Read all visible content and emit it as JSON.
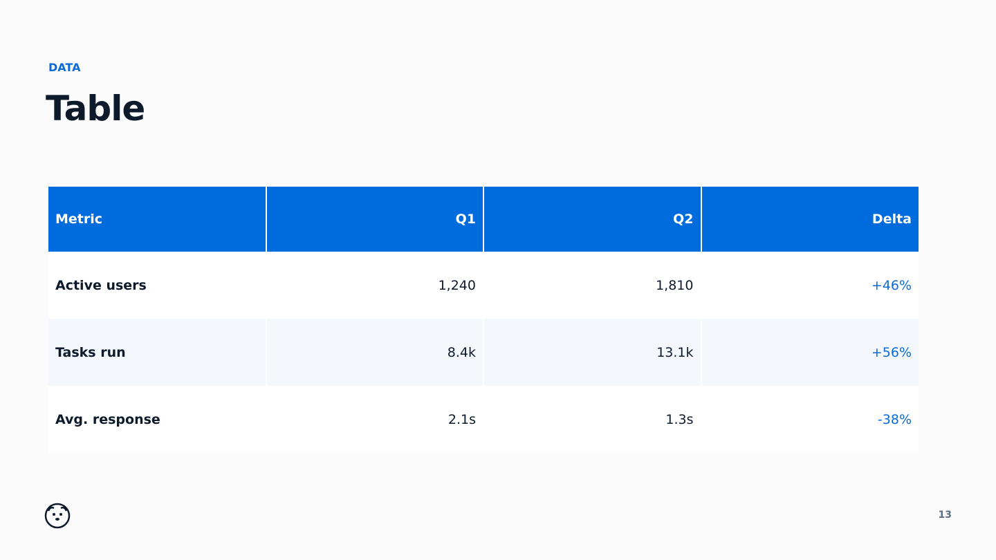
{
  "header": {
    "eyebrow": "DATA",
    "title": "Table"
  },
  "table": {
    "columns": [
      "Metric",
      "Q1",
      "Q2",
      "Delta"
    ],
    "rows": [
      [
        "Active users",
        "1,240",
        "1,810",
        "+46%"
      ],
      [
        "Tasks run",
        "8.4k",
        "13.1k",
        "+56%"
      ],
      [
        "Avg. response",
        "2.1s",
        "1.3s",
        "-38%"
      ]
    ]
  },
  "footer": {
    "page_number": "13"
  }
}
